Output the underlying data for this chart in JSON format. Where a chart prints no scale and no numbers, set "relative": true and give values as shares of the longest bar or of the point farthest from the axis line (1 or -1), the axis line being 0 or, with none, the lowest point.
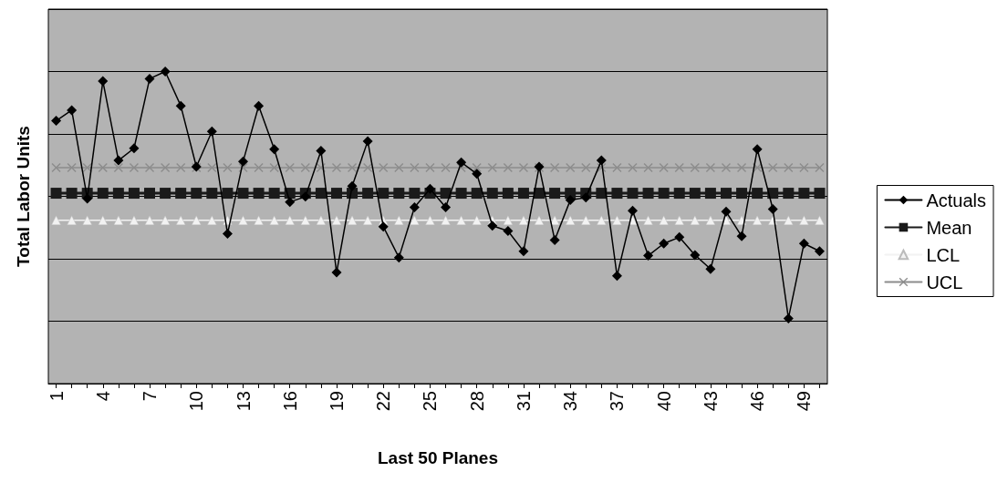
{
  "chart_data": {
    "type": "line",
    "relative": true,
    "xlabel": "Last 50 Planes",
    "ylabel": "Total Labor Units",
    "categories": [
      "1",
      null,
      null,
      "4",
      null,
      null,
      "7",
      null,
      null,
      "10",
      null,
      null,
      "13",
      null,
      null,
      "16",
      null,
      null,
      "19",
      null,
      null,
      "22",
      null,
      null,
      "25",
      null,
      null,
      "28",
      null,
      null,
      "31",
      null,
      null,
      "34",
      null,
      null,
      "37",
      null,
      null,
      "40",
      null,
      null,
      "43",
      null,
      null,
      "46",
      null,
      null,
      "49",
      null
    ],
    "series": [
      {
        "name": "Actuals",
        "color": "#000000",
        "marker": "diamond",
        "values": [
          0.842,
          0.876,
          0.593,
          0.969,
          0.715,
          0.754,
          0.977,
          1,
          0.89,
          0.695,
          0.808,
          0.48,
          0.712,
          0.89,
          0.751,
          0.582,
          0.599,
          0.746,
          0.356,
          0.633,
          0.777,
          0.503,
          0.404,
          0.565,
          0.624,
          0.565,
          0.709,
          0.672,
          0.506,
          0.489,
          0.424,
          0.695,
          0.46,
          0.588,
          0.596,
          0.715,
          0.345,
          0.554,
          0.41,
          0.449,
          0.469,
          0.412,
          0.367,
          0.551,
          0.472,
          0.751,
          0.559,
          0.209,
          0.449,
          0.424
        ]
      },
      {
        "name": "Mean",
        "color": "#1a1a1a",
        "marker": "square",
        "values": [
          0.61,
          0.61,
          0.61,
          0.61,
          0.61,
          0.61,
          0.61,
          0.61,
          0.61,
          0.61,
          0.61,
          0.61,
          0.61,
          0.61,
          0.61,
          0.61,
          0.61,
          0.61,
          0.61,
          0.61,
          0.61,
          0.61,
          0.61,
          0.61,
          0.61,
          0.61,
          0.61,
          0.61,
          0.61,
          0.61,
          0.61,
          0.61,
          0.61,
          0.61,
          0.61,
          0.61,
          0.61,
          0.61,
          0.61,
          0.61,
          0.61,
          0.61,
          0.61,
          0.61,
          0.61,
          0.61,
          0.61,
          0.61,
          0.61,
          0.61
        ]
      },
      {
        "name": "LCL",
        "color": "#f2f2f2",
        "marker": "triangle",
        "values": [
          0.523,
          0.523,
          0.523,
          0.523,
          0.523,
          0.523,
          0.523,
          0.523,
          0.523,
          0.523,
          0.523,
          0.523,
          0.523,
          0.523,
          0.523,
          0.523,
          0.523,
          0.523,
          0.523,
          0.523,
          0.523,
          0.523,
          0.523,
          0.523,
          0.523,
          0.523,
          0.523,
          0.523,
          0.523,
          0.523,
          0.523,
          0.523,
          0.523,
          0.523,
          0.523,
          0.523,
          0.523,
          0.523,
          0.523,
          0.523,
          0.523,
          0.523,
          0.523,
          0.523,
          0.523,
          0.523,
          0.523,
          0.523,
          0.523,
          0.523
        ]
      },
      {
        "name": "UCL",
        "color": "#8c8c8c",
        "marker": "cross",
        "values": [
          0.692,
          0.692,
          0.692,
          0.692,
          0.692,
          0.692,
          0.692,
          0.692,
          0.692,
          0.692,
          0.692,
          0.692,
          0.692,
          0.692,
          0.692,
          0.692,
          0.692,
          0.692,
          0.692,
          0.692,
          0.692,
          0.692,
          0.692,
          0.692,
          0.692,
          0.692,
          0.692,
          0.692,
          0.692,
          0.692,
          0.692,
          0.692,
          0.692,
          0.692,
          0.692,
          0.692,
          0.692,
          0.692,
          0.692,
          0.692,
          0.692,
          0.692,
          0.692,
          0.692,
          0.692,
          0.692,
          0.692,
          0.692,
          0.692,
          0.692
        ]
      }
    ],
    "grid": "y",
    "legend": "right",
    "tick_labels": "x",
    "line_style": "solid"
  }
}
